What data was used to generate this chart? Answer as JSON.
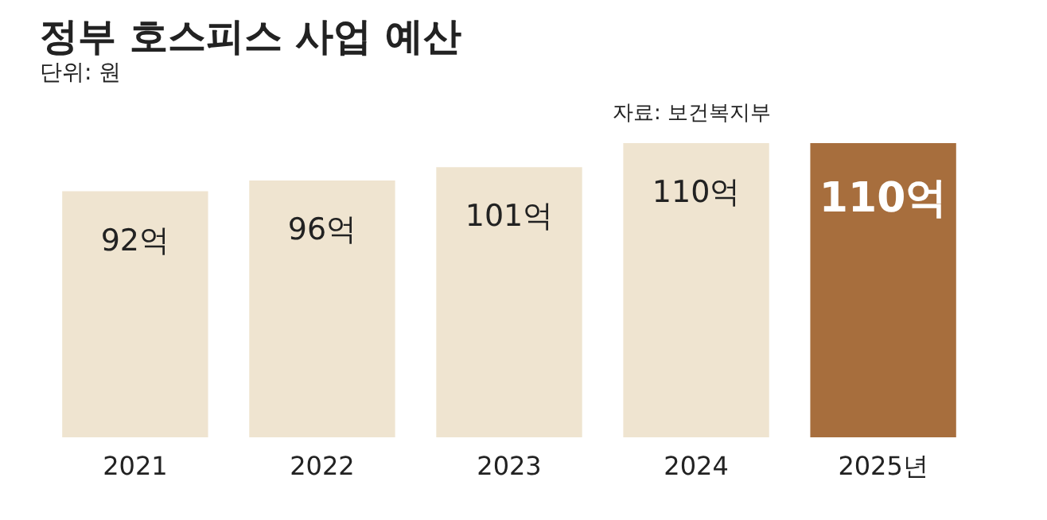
{
  "chart_data": {
    "type": "bar",
    "title": "정부 호스피스 사업 예산",
    "subtitle": "단위: 원",
    "annotations": [
      "자료: 보건복지부"
    ],
    "categories": [
      "2021",
      "2022",
      "2023",
      "2024",
      "2025년"
    ],
    "values": [
      92,
      96,
      101,
      110,
      110
    ],
    "value_labels": [
      "92억",
      "96억",
      "101억",
      "110억",
      "110억"
    ],
    "colors": [
      "#efe4d0",
      "#efe4d0",
      "#efe4d0",
      "#efe4d0",
      "#a76e3d"
    ]
  }
}
